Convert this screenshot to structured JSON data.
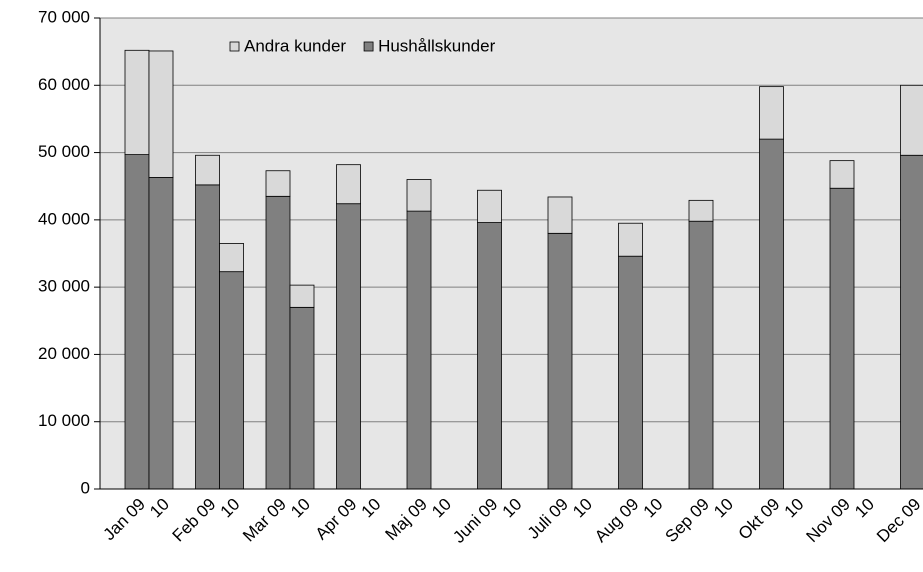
{
  "chart_data": {
    "type": "stacked-bar",
    "categories": [
      "Jan 09",
      "10",
      "Feb 09",
      "10",
      "Mar 09",
      "10",
      "Apr 09",
      "10",
      "Maj 09",
      "10",
      "Juni 09",
      "10",
      "Juli 09",
      "10",
      "Aug 09",
      "10",
      "Sep 09",
      "10",
      "Okt 09",
      "10",
      "Nov 09",
      "10",
      "Dec 09"
    ],
    "series": [
      {
        "name": "Andra kunder",
        "color": "#d9d9d9",
        "values": [
          15500,
          18800,
          4400,
          4200,
          3800,
          3300,
          5800,
          null,
          4700,
          null,
          4800,
          null,
          5400,
          null,
          4900,
          null,
          3100,
          null,
          7800,
          null,
          4100,
          null,
          10400
        ]
      },
      {
        "name": "Hushållskunder",
        "color": "#808080",
        "values": [
          49700,
          46300,
          45200,
          32300,
          43500,
          27000,
          42400,
          null,
          41300,
          null,
          39600,
          null,
          38000,
          null,
          34600,
          null,
          39800,
          null,
          52000,
          null,
          44700,
          null,
          49600
        ]
      }
    ],
    "ylim": [
      0,
      70000
    ],
    "yticks": [
      {
        "value": 0,
        "label": "0"
      },
      {
        "value": 10000,
        "label": "10 000"
      },
      {
        "value": 20000,
        "label": "20 000"
      },
      {
        "value": 30000,
        "label": "30 000"
      },
      {
        "value": 40000,
        "label": "40 000"
      },
      {
        "value": 50000,
        "label": "50 000"
      },
      {
        "value": 60000,
        "label": "60 000"
      },
      {
        "value": 70000,
        "label": "70 000"
      }
    ],
    "grid": true
  }
}
